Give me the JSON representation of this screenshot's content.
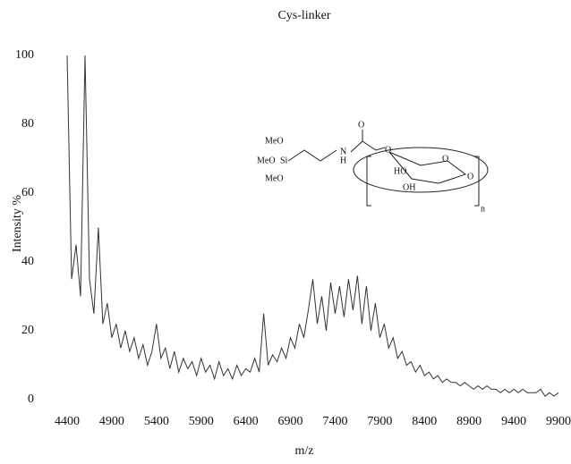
{
  "chart_data": {
    "type": "line",
    "title": "Cys-linker",
    "xlabel": "m/z",
    "ylabel": "Intensity %",
    "x": [
      4400,
      4450,
      4500,
      4550,
      4600,
      4650,
      4700,
      4750,
      4800,
      4850,
      4900,
      4950,
      5000,
      5050,
      5100,
      5150,
      5200,
      5250,
      5300,
      5350,
      5400,
      5450,
      5500,
      5550,
      5600,
      5650,
      5700,
      5750,
      5800,
      5850,
      5900,
      5950,
      6000,
      6050,
      6100,
      6150,
      6200,
      6250,
      6300,
      6350,
      6400,
      6450,
      6500,
      6550,
      6600,
      6650,
      6700,
      6750,
      6800,
      6850,
      6900,
      6950,
      7000,
      7050,
      7100,
      7150,
      7200,
      7250,
      7300,
      7350,
      7400,
      7450,
      7500,
      7550,
      7600,
      7650,
      7700,
      7750,
      7800,
      7850,
      7900,
      7950,
      8000,
      8050,
      8100,
      8150,
      8200,
      8250,
      8300,
      8350,
      8400,
      8450,
      8500,
      8550,
      8600,
      8650,
      8700,
      8750,
      8800,
      8850,
      8900,
      8950,
      9000,
      9050,
      9100,
      9150,
      9200,
      9250,
      9300,
      9350,
      9400,
      9450,
      9500,
      9550,
      9600,
      9650,
      9700,
      9750,
      9800,
      9850,
      9900
    ],
    "series": [
      {
        "name": "Cys-linker",
        "color": "#333333",
        "values": [
          100,
          35,
          45,
          30,
          100,
          35,
          25,
          50,
          22,
          28,
          18,
          22,
          15,
          20,
          14,
          18,
          12,
          16,
          10,
          14,
          22,
          12,
          15,
          9,
          14,
          8,
          12,
          9,
          11,
          7,
          12,
          8,
          10,
          6,
          11,
          7,
          9,
          6,
          10,
          7,
          9,
          8,
          12,
          8,
          25,
          10,
          13,
          11,
          15,
          12,
          18,
          15,
          22,
          18,
          26,
          35,
          22,
          30,
          20,
          34,
          25,
          33,
          24,
          35,
          26,
          36,
          22,
          33,
          20,
          28,
          18,
          22,
          15,
          18,
          12,
          14,
          10,
          11,
          8,
          10,
          7,
          8,
          6,
          7,
          5,
          6,
          5,
          5,
          4,
          5,
          4,
          3,
          4,
          3,
          4,
          3,
          3,
          2,
          3,
          2,
          3,
          2,
          3,
          2,
          2,
          2,
          3,
          1,
          2,
          1,
          2
        ]
      }
    ],
    "xlim": [
      4400,
      9900
    ],
    "xticks": [
      4400,
      4900,
      5400,
      5900,
      6400,
      6900,
      7400,
      7900,
      8400,
      8900,
      9400,
      9900
    ],
    "ylim": [
      0,
      100
    ],
    "yticks": [
      0,
      20,
      40,
      60,
      80,
      100
    ],
    "annotations": [
      "MeO",
      "MeO",
      "MeO",
      "Si",
      "N",
      "H",
      "O",
      "O",
      "HO",
      "OH",
      "O",
      "O",
      "n"
    ]
  }
}
